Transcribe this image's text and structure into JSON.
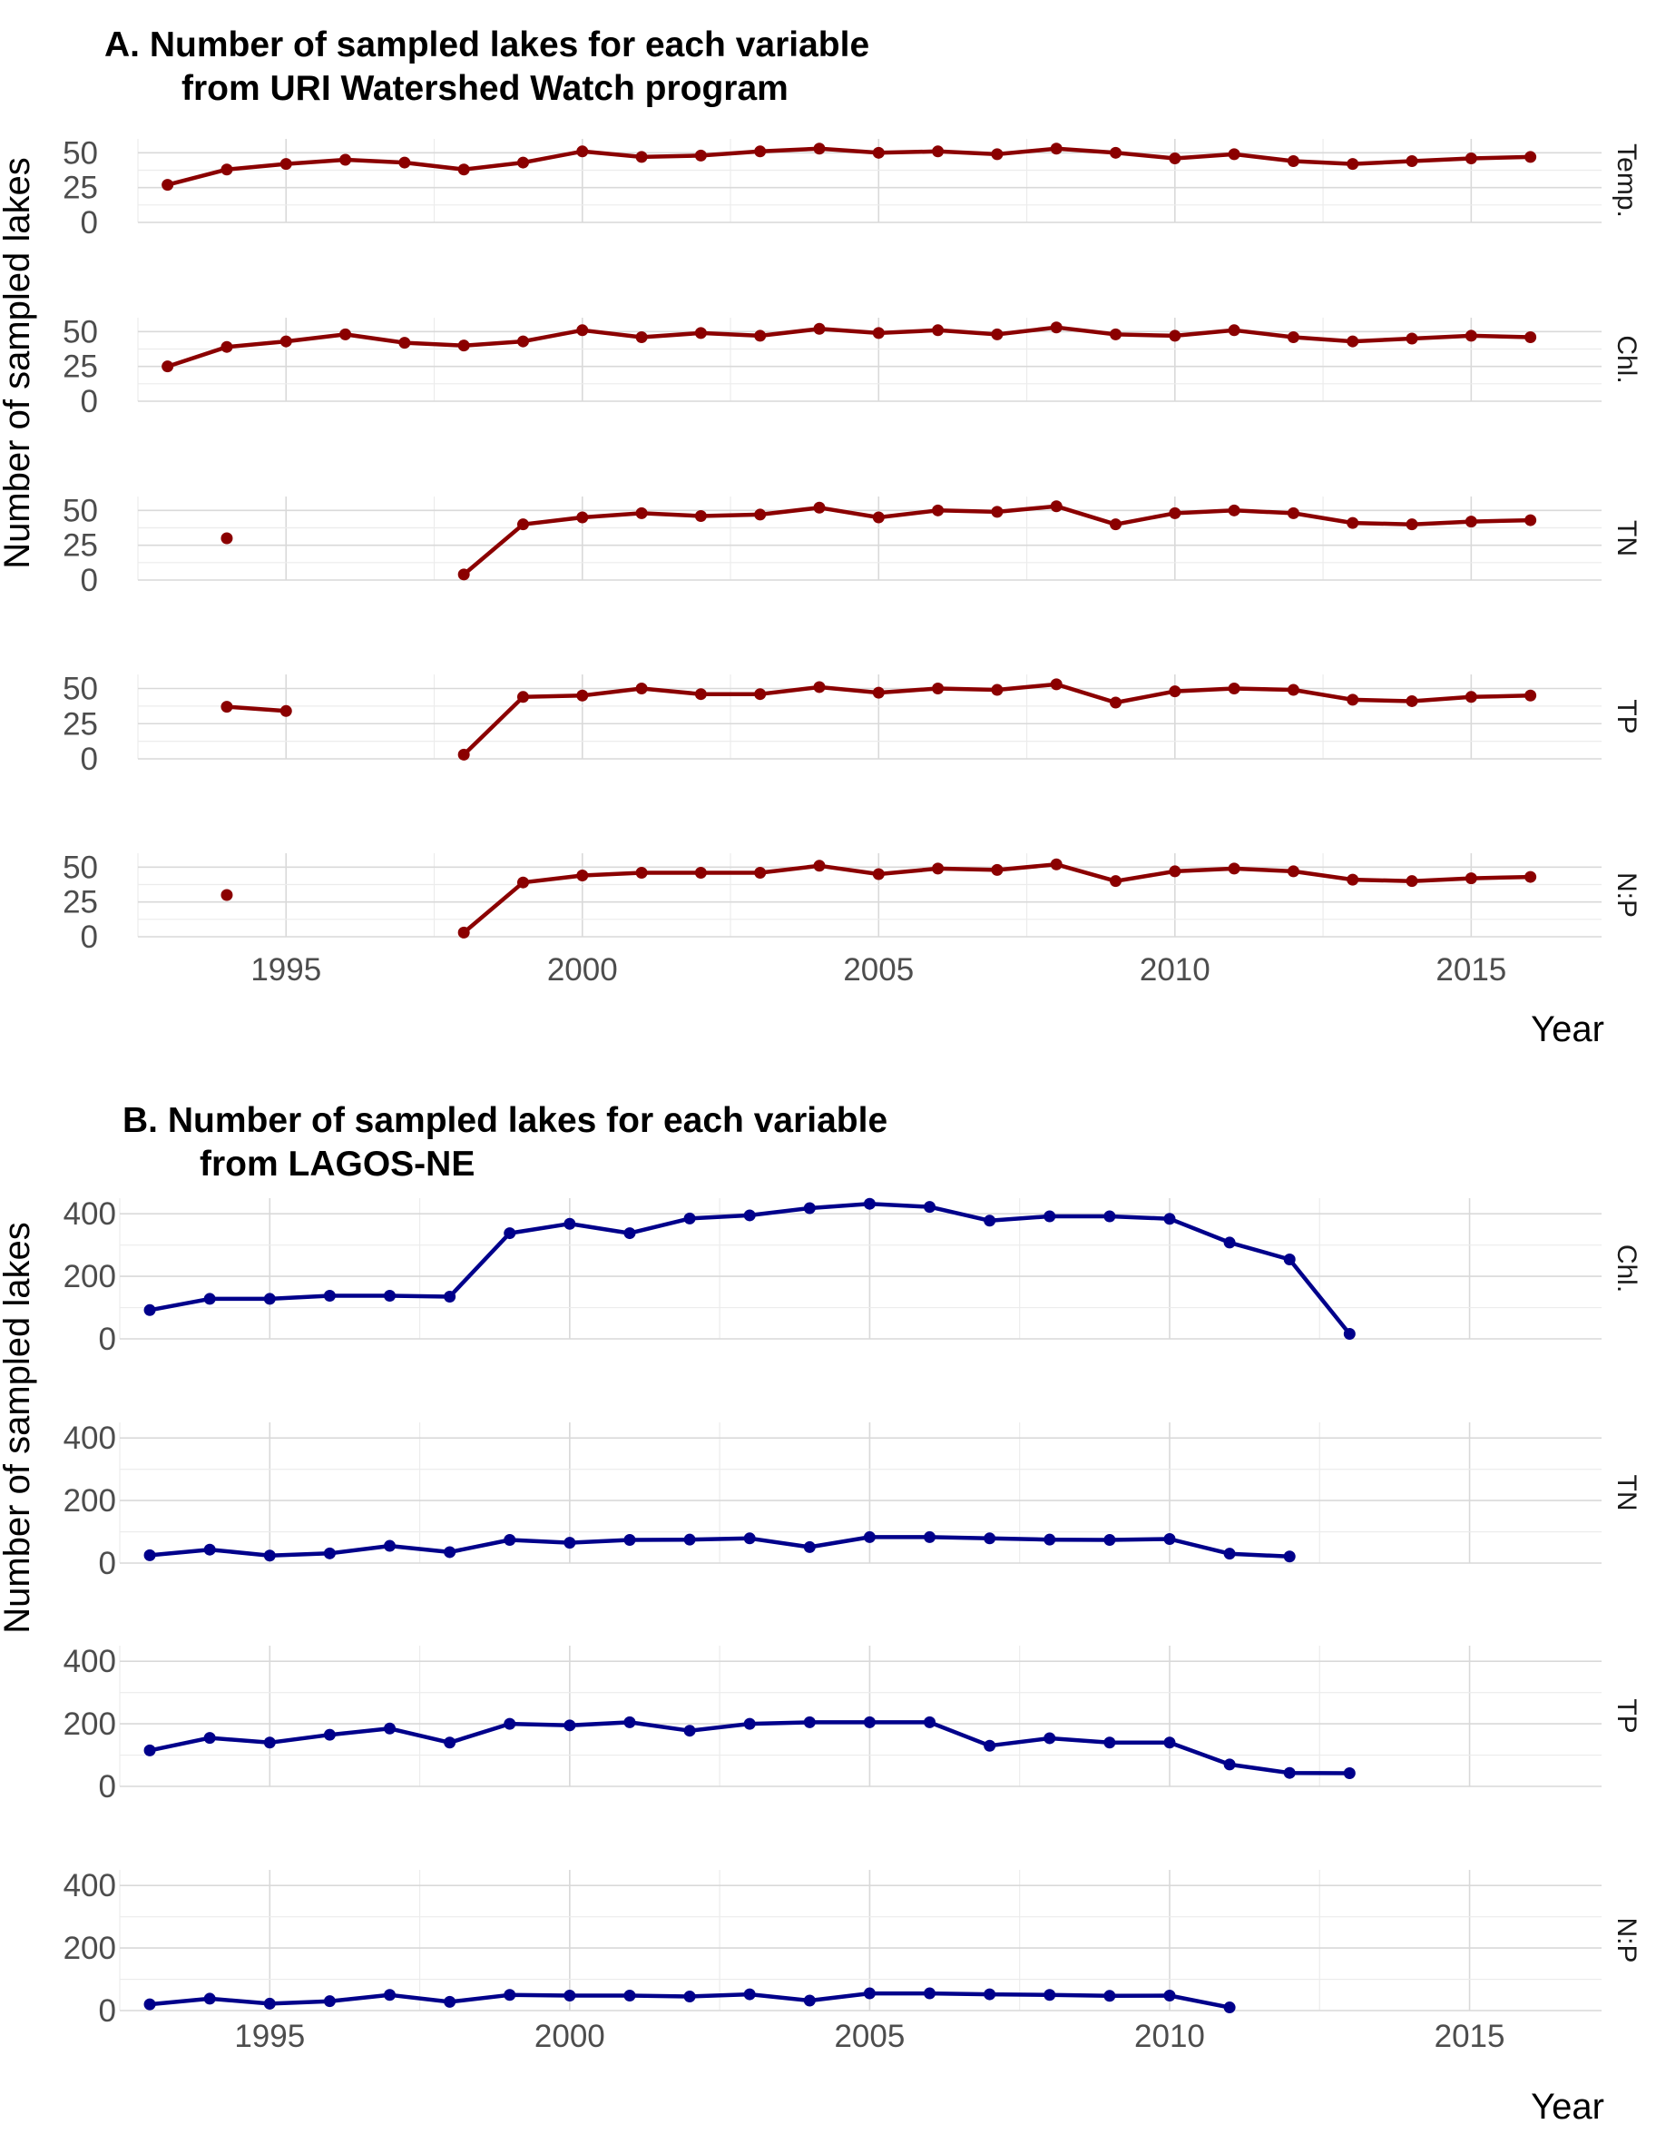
{
  "chart_data": [
    {
      "type": "line",
      "title_line1": "A. Number of sampled lakes for each variable",
      "title_line2": "from URI Watershed Watch program",
      "xlabel": "Year",
      "ylabel": "Number of sampled lakes",
      "xlim": [
        1992.5,
        2017.2
      ],
      "ylim": [
        0,
        60
      ],
      "yticks": [
        0,
        25,
        50
      ],
      "xticks": [
        1995,
        2000,
        2005,
        2010,
        2015
      ],
      "x_tick_labels": [
        "1995",
        "2000",
        "2005",
        "2010",
        "2015"
      ],
      "color": "#8B0000",
      "grid": true,
      "panels": [
        {
          "strip": "Temp.",
          "y_tick_labels": [
            "0",
            "25",
            "50"
          ],
          "x": [
            1993,
            1994,
            1995,
            1996,
            1997,
            1998,
            1999,
            2000,
            2001,
            2002,
            2003,
            2004,
            2005,
            2006,
            2007,
            2008,
            2009,
            2010,
            2011,
            2012,
            2013,
            2014,
            2015,
            2016
          ],
          "y": [
            27,
            38,
            42,
            45,
            43,
            38,
            43,
            51,
            47,
            48,
            51,
            53,
            50,
            51,
            49,
            53,
            50,
            46,
            49,
            44,
            42,
            44,
            46,
            47
          ]
        },
        {
          "strip": "Chl.",
          "y_tick_labels": [
            "0",
            "25",
            "50"
          ],
          "x": [
            1993,
            1994,
            1995,
            1996,
            1997,
            1998,
            1999,
            2000,
            2001,
            2002,
            2003,
            2004,
            2005,
            2006,
            2007,
            2008,
            2009,
            2010,
            2011,
            2012,
            2013,
            2014,
            2015,
            2016
          ],
          "y": [
            25,
            39,
            43,
            48,
            42,
            40,
            43,
            51,
            46,
            49,
            47,
            52,
            49,
            51,
            48,
            53,
            48,
            47,
            51,
            46,
            43,
            45,
            47,
            46
          ]
        },
        {
          "strip": "TN",
          "y_tick_labels": [
            "0",
            "25",
            "50"
          ],
          "x": [
            1994,
            1998,
            1999,
            2000,
            2001,
            2002,
            2003,
            2004,
            2005,
            2006,
            2007,
            2008,
            2009,
            2010,
            2011,
            2012,
            2013,
            2014,
            2015,
            2016
          ],
          "y": [
            30,
            4,
            40,
            45,
            48,
            46,
            47,
            52,
            45,
            50,
            49,
            53,
            40,
            48,
            50,
            48,
            41,
            40,
            42,
            43
          ],
          "segments": [
            [
              0,
              0
            ],
            [
              1,
              19
            ]
          ]
        },
        {
          "strip": "TP",
          "y_tick_labels": [
            "0",
            "25",
            "50"
          ],
          "x": [
            1994,
            1995,
            1998,
            1999,
            2000,
            2001,
            2002,
            2003,
            2004,
            2005,
            2006,
            2007,
            2008,
            2009,
            2010,
            2011,
            2012,
            2013,
            2014,
            2015,
            2016
          ],
          "y": [
            37,
            34,
            3,
            44,
            45,
            50,
            46,
            46,
            51,
            47,
            50,
            49,
            53,
            40,
            48,
            50,
            49,
            42,
            41,
            44,
            45
          ],
          "segments": [
            [
              0,
              1
            ],
            [
              2,
              20
            ]
          ]
        },
        {
          "strip": "N:P",
          "y_tick_labels": [
            "0",
            "25",
            "50"
          ],
          "x": [
            1994,
            1998,
            1999,
            2000,
            2001,
            2002,
            2003,
            2004,
            2005,
            2006,
            2007,
            2008,
            2009,
            2010,
            2011,
            2012,
            2013,
            2014,
            2015,
            2016
          ],
          "y": [
            30,
            3,
            39,
            44,
            46,
            46,
            46,
            51,
            45,
            49,
            48,
            52,
            40,
            47,
            49,
            47,
            41,
            40,
            42,
            43
          ],
          "segments": [
            [
              0,
              0
            ],
            [
              1,
              19
            ]
          ]
        }
      ]
    },
    {
      "type": "line",
      "title_line1": "B. Number of sampled lakes for each variable",
      "title_line2": "from LAGOS-NE",
      "xlabel": "Year",
      "ylabel": "Number of sampled lakes",
      "xlim": [
        1992.5,
        2017.2
      ],
      "ylim": [
        0,
        450
      ],
      "yticks": [
        0,
        200,
        400
      ],
      "xticks": [
        1995,
        2000,
        2005,
        2010,
        2015
      ],
      "x_tick_labels": [
        "1995",
        "2000",
        "2005",
        "2010",
        "2015"
      ],
      "color": "#00008B",
      "grid": true,
      "panels": [
        {
          "strip": "Chl.",
          "y_tick_labels": [
            "0",
            "200",
            "400"
          ],
          "x": [
            1993,
            1994,
            1995,
            1996,
            1997,
            1998,
            1999,
            2000,
            2001,
            2002,
            2003,
            2004,
            2005,
            2006,
            2007,
            2008,
            2009,
            2010,
            2011,
            2012,
            2013
          ],
          "y": [
            92,
            128,
            128,
            138,
            138,
            135,
            338,
            368,
            338,
            385,
            395,
            418,
            432,
            422,
            378,
            392,
            392,
            384,
            308,
            254,
            16
          ]
        },
        {
          "strip": "TN",
          "y_tick_labels": [
            "0",
            "200",
            "400"
          ],
          "x": [
            1993,
            1994,
            1995,
            1996,
            1997,
            1998,
            1999,
            2000,
            2001,
            2002,
            2003,
            2004,
            2005,
            2006,
            2007,
            2008,
            2009,
            2010,
            2011,
            2012
          ],
          "y": [
            25,
            43,
            24,
            31,
            55,
            35,
            74,
            65,
            74,
            75,
            79,
            51,
            83,
            83,
            79,
            75,
            74,
            77,
            30,
            21
          ]
        },
        {
          "strip": "TP",
          "y_tick_labels": [
            "0",
            "200",
            "400"
          ],
          "x": [
            1993,
            1994,
            1995,
            1996,
            1997,
            1998,
            1999,
            2000,
            2001,
            2002,
            2003,
            2004,
            2005,
            2006,
            2007,
            2008,
            2009,
            2010,
            2011,
            2012,
            2013
          ],
          "y": [
            115,
            155,
            140,
            165,
            185,
            140,
            200,
            195,
            205,
            178,
            200,
            205,
            205,
            205,
            130,
            154,
            140,
            140,
            70,
            43,
            42
          ]
        },
        {
          "strip": "N:P",
          "y_tick_labels": [
            "0",
            "200",
            "400"
          ],
          "x": [
            1993,
            1994,
            1995,
            1996,
            1997,
            1998,
            1999,
            2000,
            2001,
            2002,
            2003,
            2004,
            2005,
            2006,
            2007,
            2008,
            2009,
            2010,
            2011
          ],
          "y": [
            20,
            38,
            22,
            30,
            50,
            28,
            50,
            48,
            48,
            45,
            52,
            32,
            55,
            55,
            52,
            50,
            47,
            48,
            10
          ]
        }
      ]
    }
  ]
}
